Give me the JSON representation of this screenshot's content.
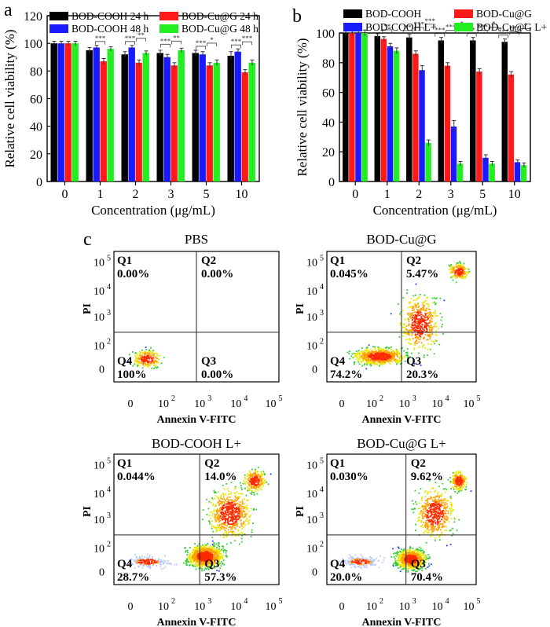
{
  "figure": {
    "panel_letters": [
      "a",
      "b",
      "c"
    ]
  },
  "chart_data": [
    {
      "panel": "a",
      "type": "bar",
      "categories": [
        "0",
        "1",
        "2",
        "3",
        "5",
        "10"
      ],
      "xlabel": "Concentration (μg/mL)",
      "ylabel": "Relative cell viability (%)",
      "ylim": [
        0,
        120
      ],
      "yticks": [
        "0",
        "20",
        "40",
        "60",
        "80",
        "100",
        "120"
      ],
      "legend_position": "top",
      "series": [
        {
          "name": "BOD-COOH 24 h",
          "color": "#000000",
          "values": [
            100,
            95,
            92,
            93,
            93,
            91
          ],
          "errors": [
            1.5,
            2,
            2,
            2,
            2,
            3
          ]
        },
        {
          "name": "BOD-COOH 48 h",
          "color": "#1a1aff",
          "values": [
            100,
            97,
            97,
            90,
            92,
            94
          ],
          "errors": [
            1.5,
            1.5,
            1.5,
            2,
            2,
            2
          ]
        },
        {
          "name": "BOD-Cu@G 24 h",
          "color": "#ff1a1a",
          "values": [
            100,
            87,
            86,
            84,
            84,
            79
          ],
          "errors": [
            1.5,
            2,
            2,
            2,
            2,
            2
          ]
        },
        {
          "name": "BOD-Cu@G 48 h",
          "color": "#22ee22",
          "values": [
            100,
            96,
            93,
            95,
            86,
            86
          ],
          "errors": [
            1.5,
            1.5,
            1.5,
            1.5,
            2,
            2
          ]
        }
      ],
      "annotations": [
        [
          "***"
        ],
        [
          "***",
          "**"
        ],
        [
          "***",
          "**"
        ],
        [
          "***",
          "*"
        ],
        [
          "***",
          "***"
        ]
      ]
    },
    {
      "panel": "b",
      "type": "bar",
      "categories": [
        "0",
        "1",
        "2",
        "3",
        "5",
        "10"
      ],
      "xlabel": "Concentration (μg/mL)",
      "ylabel": "Relative cell viability (%)",
      "ylim": [
        0,
        100
      ],
      "yticks": [
        "0",
        "20",
        "40",
        "60",
        "80",
        "100"
      ],
      "legend_position": "top",
      "series": [
        {
          "name": "BOD-COOH",
          "color": "#000000",
          "values": [
            100,
            98,
            97,
            95,
            95,
            94
          ],
          "errors": [
            2,
            1.5,
            2,
            2,
            2,
            2
          ]
        },
        {
          "name": "BOD-Cu@G",
          "color": "#ff1a1a",
          "values": [
            100,
            96,
            86,
            78,
            74,
            72
          ],
          "errors": [
            2,
            1.5,
            2,
            2,
            2,
            2
          ]
        },
        {
          "name": "BOD-COOH  L+",
          "color": "#1a1aff",
          "values": [
            100,
            91,
            75,
            37,
            16,
            13
          ],
          "errors": [
            2,
            2,
            3,
            4,
            2,
            1.5
          ]
        },
        {
          "name": "BOD-Cu@G  L+",
          "color": "#22ee22",
          "values": [
            100,
            88,
            26,
            12,
            12,
            11
          ],
          "errors": [
            2,
            2,
            2,
            1.5,
            1.5,
            1.5
          ]
        }
      ],
      "annotations": [
        [
          "**"
        ],
        [
          "**",
          "***",
          "***"
        ],
        [
          "***",
          "***",
          "*"
        ],
        [
          "**",
          "***",
          "*"
        ],
        [
          "***",
          "***",
          "*"
        ]
      ]
    },
    {
      "panel": "c",
      "type": "scatter",
      "xlabel": "Annexin V-FITC",
      "ylabel": "PI",
      "xticks": [
        "0",
        "10",
        "10",
        "10",
        "10"
      ],
      "xtick_exponents": [
        "",
        "2",
        "3",
        "4",
        "5"
      ],
      "yticks": [
        "0",
        "10",
        "10",
        "10",
        "10"
      ],
      "ytick_exponents": [
        "",
        "2",
        "3",
        "4",
        "5"
      ],
      "plots": [
        {
          "title": "PBS",
          "quadrants": {
            "Q1": "0.00%",
            "Q2": "0.00%",
            "Q3": "0.00%",
            "Q4": "100%"
          }
        },
        {
          "title": "BOD-Cu@G",
          "quadrants": {
            "Q1": "0.045%",
            "Q2": "5.47%",
            "Q3": "20.3%",
            "Q4": "74.2%"
          }
        },
        {
          "title": "BOD-COOH L+",
          "quadrants": {
            "Q1": "0.044%",
            "Q2": "14.0%",
            "Q3": "57.3%",
            "Q4": "28.7%"
          }
        },
        {
          "title": "BOD-Cu@G  L+",
          "quadrants": {
            "Q1": "0.030%",
            "Q2": "9.62%",
            "Q3": "70.4%",
            "Q4": "20.0%"
          }
        }
      ]
    }
  ]
}
